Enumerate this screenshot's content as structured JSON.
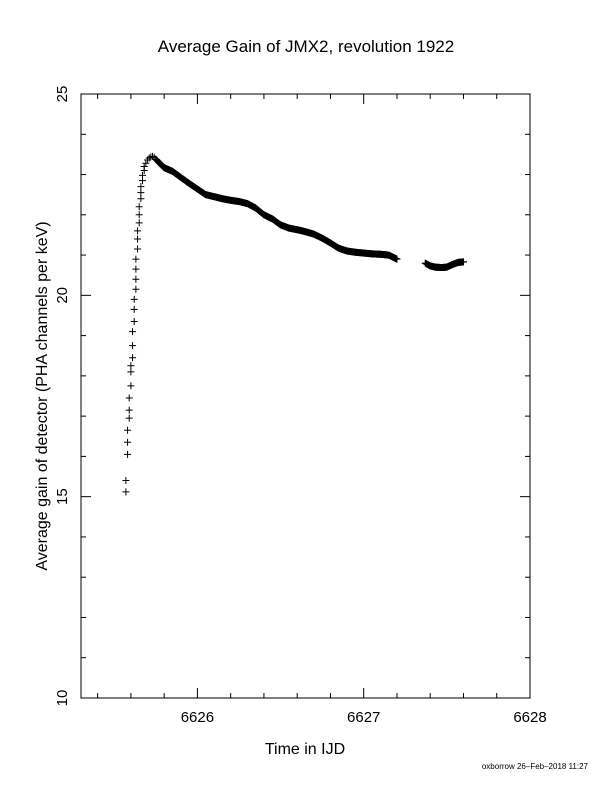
{
  "chart_data": {
    "type": "scatter",
    "title": "Average Gain of JMX2, revolution 1922",
    "xlabel": "Time in IJD",
    "ylabel": "Average gain of detector (PHA channels per keV)",
    "xlim": [
      6625.3,
      6628
    ],
    "ylim": [
      10,
      25
    ],
    "xticks": [
      6626,
      6627,
      6628
    ],
    "yticks": [
      10,
      15,
      20,
      25
    ],
    "x_minor_step": 0.2,
    "y_minor_step": 1,
    "marker": "+",
    "series": [
      {
        "points": [
          [
            6625.57,
            15.12
          ],
          [
            6625.57,
            15.4
          ],
          [
            6625.58,
            16.05
          ],
          [
            6625.58,
            16.35
          ],
          [
            6625.58,
            16.65
          ],
          [
            6625.59,
            16.95
          ],
          [
            6625.59,
            17.15
          ],
          [
            6625.59,
            17.45
          ],
          [
            6625.6,
            17.75
          ],
          [
            6625.6,
            18.1
          ],
          [
            6625.6,
            18.25
          ],
          [
            6625.61,
            18.45
          ],
          [
            6625.61,
            18.75
          ],
          [
            6625.61,
            19.1
          ],
          [
            6625.62,
            19.35
          ],
          [
            6625.62,
            19.65
          ],
          [
            6625.62,
            19.9
          ],
          [
            6625.63,
            20.15
          ],
          [
            6625.63,
            20.4
          ],
          [
            6625.63,
            20.65
          ],
          [
            6625.63,
            20.9
          ],
          [
            6625.64,
            21.15
          ],
          [
            6625.64,
            21.4
          ],
          [
            6625.64,
            21.6
          ],
          [
            6625.65,
            21.8
          ],
          [
            6625.65,
            22.0
          ],
          [
            6625.65,
            22.2
          ],
          [
            6625.66,
            22.4
          ],
          [
            6625.66,
            22.55
          ],
          [
            6625.66,
            22.7
          ],
          [
            6625.67,
            22.85
          ],
          [
            6625.67,
            22.98
          ],
          [
            6625.68,
            23.1
          ],
          [
            6625.68,
            23.2
          ],
          [
            6625.69,
            23.28
          ],
          [
            6625.7,
            23.36
          ],
          [
            6625.71,
            23.41
          ],
          [
            6625.72,
            23.44
          ],
          [
            6625.73,
            23.45
          ],
          [
            6625.74,
            23.43
          ],
          [
            6625.75,
            23.38
          ]
        ],
        "segments": [
          {
            "x": [
              6625.75,
              6625.8,
              6625.85,
              6625.9,
              6625.95,
              6626.0,
              6626.05,
              6626.1,
              6626.15,
              6626.2,
              6626.25,
              6626.3,
              6626.35,
              6626.4,
              6626.45,
              6626.5,
              6626.55,
              6626.6,
              6626.65,
              6626.7,
              6626.75,
              6626.8,
              6626.85,
              6626.9,
              6626.95,
              6627.0,
              6627.05,
              6627.1,
              6627.15,
              6627.2
            ],
            "y": [
              23.38,
              23.17,
              23.08,
              22.93,
              22.78,
              22.64,
              22.5,
              22.45,
              22.4,
              22.36,
              22.33,
              22.28,
              22.17,
              22.0,
              21.9,
              21.75,
              21.67,
              21.63,
              21.58,
              21.52,
              21.42,
              21.3,
              21.17,
              21.1,
              21.07,
              21.05,
              21.03,
              21.02,
              21.0,
              20.9
            ],
            "step": 0.003
          },
          {
            "x": [
              6627.37,
              6627.4,
              6627.43,
              6627.47,
              6627.5,
              6627.53,
              6627.57,
              6627.6
            ],
            "y": [
              20.8,
              20.73,
              20.7,
              20.69,
              20.7,
              20.76,
              20.82,
              20.83
            ],
            "step": 0.003
          }
        ]
      }
    ]
  },
  "footer": "oxborrow 26–Feb–2018 11:27"
}
